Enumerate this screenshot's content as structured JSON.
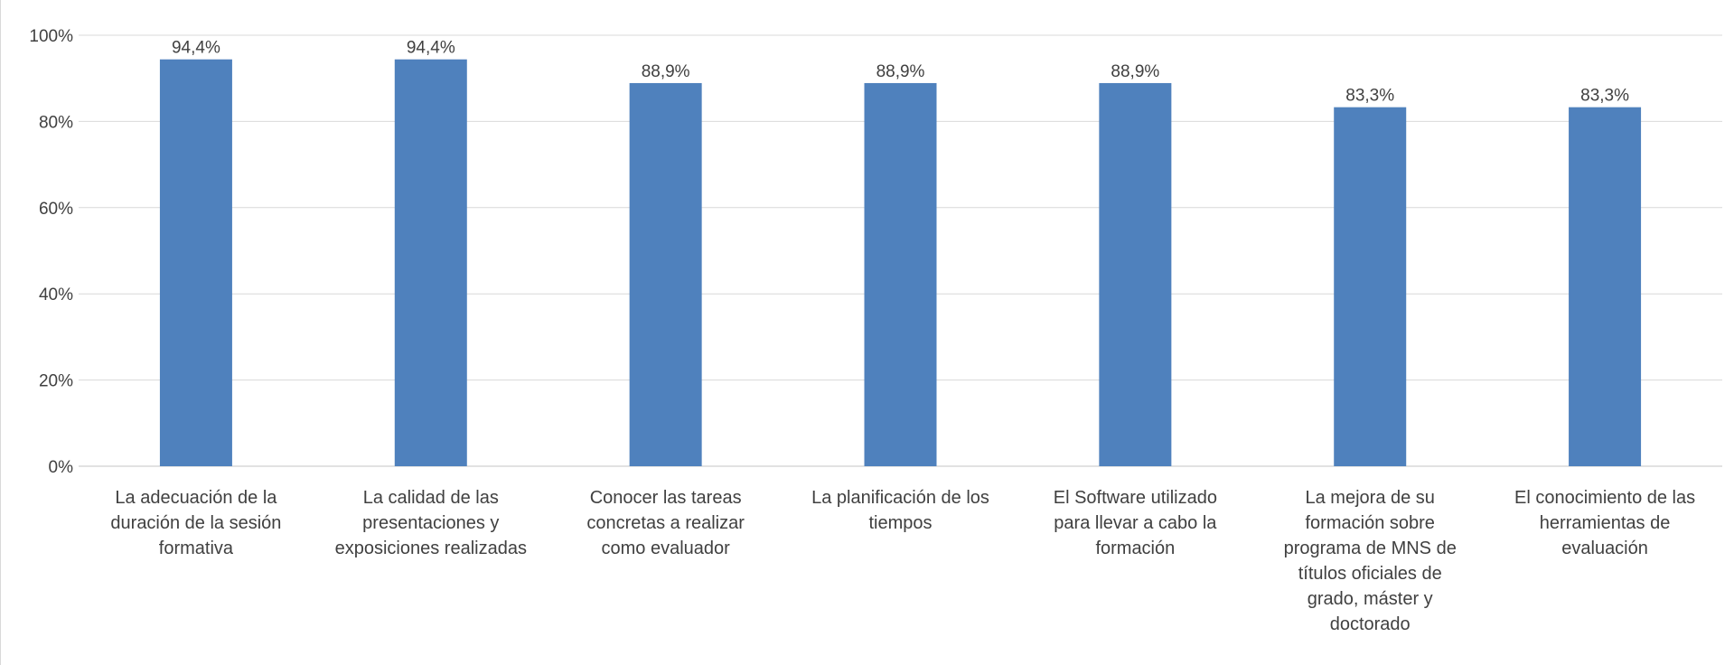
{
  "chart_data": {
    "type": "bar",
    "categories": [
      "La adecuación de la duración de la sesión formativa",
      "La calidad de las presentaciones y exposiciones realizadas",
      "Conocer las tareas concretas a realizar como evaluador",
      "La planificación de los tiempos",
      "El Software utilizado para llevar a cabo la formación",
      "La mejora de su formación sobre programa de MNS de títulos oficiales de grado, máster y doctorado",
      "El conocimiento de las herramientas de evaluación"
    ],
    "category_lines": [
      [
        "La adecuación de la",
        "duración de la sesión",
        "formativa"
      ],
      [
        "La calidad de las",
        "presentaciones y",
        "exposiciones realizadas"
      ],
      [
        "Conocer las tareas",
        "concretas a realizar",
        "como evaluador"
      ],
      [
        "La planificación de los",
        "tiempos"
      ],
      [
        "El Software utilizado",
        "para llevar a cabo la",
        "formación"
      ],
      [
        "La mejora de su",
        "formación sobre",
        "programa de MNS de",
        "títulos oficiales de",
        "grado, máster y",
        "doctorado"
      ],
      [
        "El conocimiento de las",
        "herramientas de",
        "evaluación"
      ]
    ],
    "values": [
      94.4,
      94.4,
      88.9,
      88.9,
      88.9,
      83.3,
      83.3
    ],
    "data_labels": [
      "94,4%",
      "94,4%",
      "88,9%",
      "88,9%",
      "88,9%",
      "83,3%",
      "83,3%"
    ],
    "y_ticks": [
      0,
      20,
      40,
      60,
      80,
      100
    ],
    "y_tick_labels": [
      "0%",
      "20%",
      "40%",
      "60%",
      "80%",
      "100%"
    ],
    "ylim": [
      0,
      100
    ],
    "grid": true,
    "legend": "none",
    "bar_color": "#4f81bd",
    "grid_color": "#d9d9d9",
    "text_color": "#404040"
  }
}
